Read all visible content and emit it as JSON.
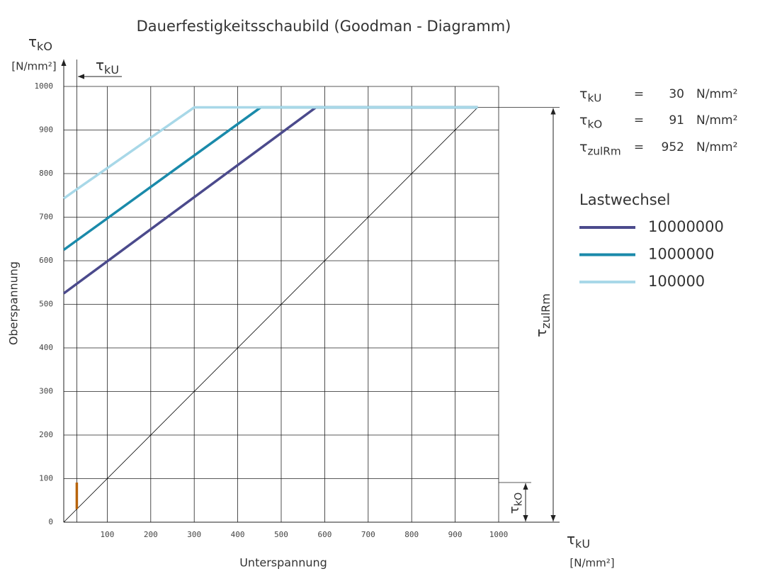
{
  "chart_data": {
    "type": "line",
    "title": "Dauerfestigkeitsschaubild (Goodman - Diagramm)",
    "x_label": "Unterspannung",
    "y_label": "Oberspannung",
    "axis_unit": "[N/mm²]",
    "xlim": [
      0,
      1000
    ],
    "ylim": [
      0,
      1000
    ],
    "xticks": [
      100,
      200,
      300,
      400,
      500,
      600,
      700,
      800,
      900,
      1000
    ],
    "yticks": [
      0,
      100,
      200,
      300,
      400,
      500,
      600,
      700,
      800,
      900,
      1000
    ],
    "grid": true,
    "legend_title": "Lastwechsel",
    "series": [
      {
        "name": "10000000",
        "color": "#4b4a8c",
        "x": [
          0,
          580,
          952
        ],
        "values": [
          525,
          952,
          952
        ]
      },
      {
        "name": "1000000",
        "color": "#1a8aaa",
        "x": [
          0,
          453,
          952
        ],
        "values": [
          625,
          952,
          952
        ]
      },
      {
        "name": "100000",
        "color": "#a8d8e8",
        "x": [
          0,
          300,
          952
        ],
        "values": [
          743,
          952,
          952
        ]
      }
    ],
    "reference_line": {
      "color": "#000000",
      "x": [
        0,
        952
      ],
      "values": [
        0,
        952
      ]
    },
    "symbol": "τ",
    "equals": "=",
    "parameters": [
      {
        "subscript": "kU",
        "value": 30,
        "unit": "N/mm²"
      },
      {
        "subscript": "kO",
        "value": 91,
        "unit": "N/mm²"
      },
      {
        "subscript": "zulRm",
        "value": 952,
        "unit": "N/mm²"
      }
    ],
    "range_mark_color": "#b8640c"
  }
}
